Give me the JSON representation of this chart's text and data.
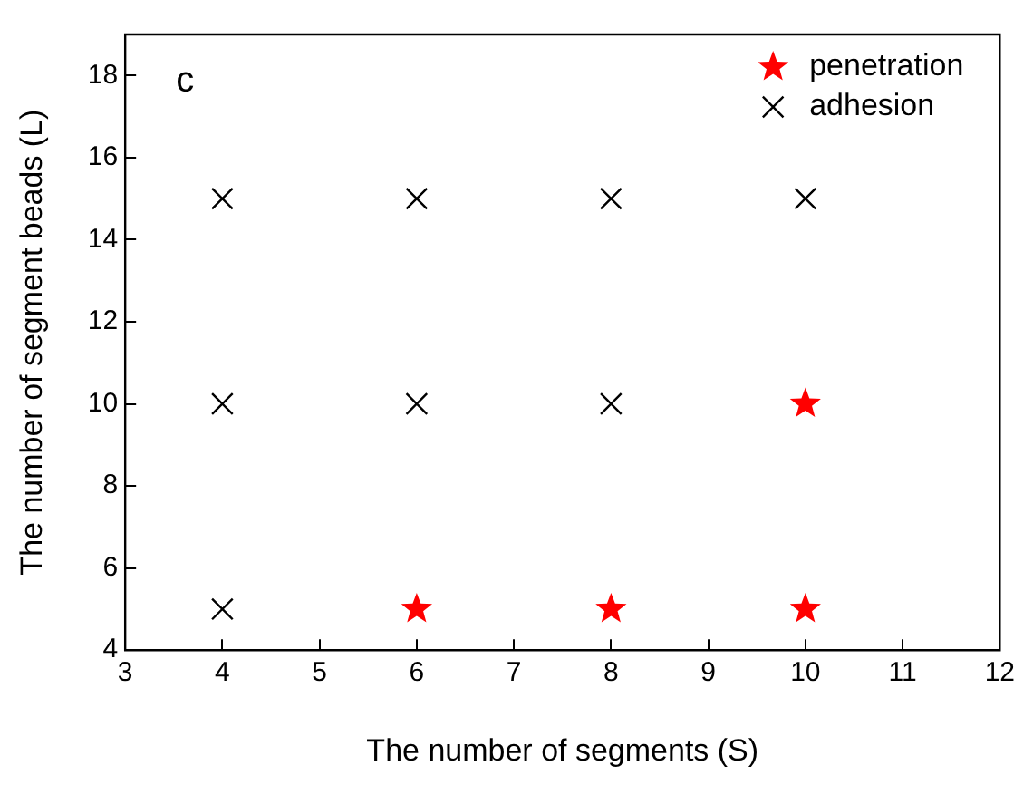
{
  "chart_data": {
    "type": "scatter",
    "xlabel": "The number of segments (S)",
    "ylabel": "The number of segment beads (L)",
    "annotations": [
      "c"
    ],
    "xlim": [
      3,
      12
    ],
    "xticks": [
      3,
      4,
      5,
      6,
      7,
      8,
      9,
      10,
      11,
      12
    ],
    "ylim": [
      4,
      19
    ],
    "yticks": [
      4,
      6,
      8,
      10,
      12,
      14,
      16,
      18
    ],
    "grid": false,
    "legend": "top right",
    "series": [
      {
        "name": "penetration",
        "color": "#ff0000",
        "marker": "star",
        "x": [
          6,
          8,
          10,
          10
        ],
        "values": [
          5,
          5,
          5,
          10
        ]
      },
      {
        "name": "adhesion",
        "color": "#000000",
        "marker": "cross",
        "x": [
          4,
          4,
          6,
          8,
          4,
          6,
          8,
          10
        ],
        "values": [
          5,
          10,
          10,
          10,
          15,
          15,
          15,
          15
        ]
      }
    ]
  }
}
